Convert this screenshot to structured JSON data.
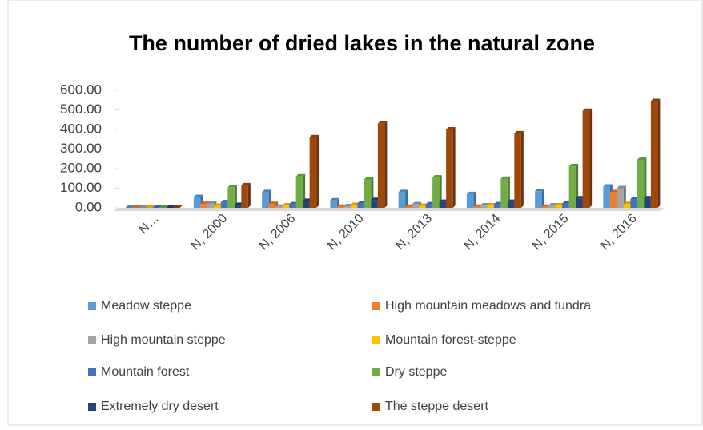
{
  "chart_data": {
    "type": "bar3d",
    "title": "The number of dried lakes in the natural zone",
    "categories": [
      "N…",
      "N, 2000",
      "N, 2006",
      "N, 2010",
      "N, 2013",
      "N, 2014",
      "N, 2015",
      "N, 2016"
    ],
    "series": [
      {
        "name": "Meadow steppe",
        "color": "#5b9bd5",
        "values": [
          0,
          55,
          80,
          38,
          80,
          70,
          85,
          108
        ]
      },
      {
        "name": "High mountain meadows and tundra",
        "color": "#ed7d31",
        "values": [
          0,
          20,
          20,
          5,
          5,
          5,
          5,
          80
        ]
      },
      {
        "name": "High mountain steppe",
        "color": "#a5a5a5",
        "values": [
          0,
          22,
          5,
          8,
          18,
          12,
          12,
          100
        ]
      },
      {
        "name": "Mountain forest-steppe",
        "color": "#ffc000",
        "values": [
          0,
          10,
          12,
          15,
          10,
          12,
          12,
          20
        ]
      },
      {
        "name": "Mountain forest",
        "color": "#4472c4",
        "values": [
          0,
          28,
          18,
          22,
          18,
          18,
          22,
          45
        ]
      },
      {
        "name": "Dry steppe",
        "color": "#70ad47",
        "values": [
          0,
          105,
          160,
          145,
          155,
          148,
          212,
          245
        ]
      },
      {
        "name": "Extremely dry desert",
        "color": "#264478",
        "values": [
          0,
          15,
          35,
          40,
          30,
          30,
          48,
          48
        ]
      },
      {
        "name": "The steppe desert",
        "color": "#9e480e",
        "values": [
          0,
          115,
          360,
          430,
          400,
          380,
          495,
          545
        ]
      }
    ],
    "ylim": [
      0,
      600
    ],
    "yticks": [
      {
        "value": 0,
        "label": "0.00"
      },
      {
        "value": 100,
        "label": "100.00"
      },
      {
        "value": 200,
        "label": "200.00"
      },
      {
        "value": 300,
        "label": "300.00"
      },
      {
        "value": 400,
        "label": "400.00"
      },
      {
        "value": 500,
        "label": "500.00"
      },
      {
        "value": 600,
        "label": "600.00"
      }
    ],
    "legend": "bottom"
  }
}
